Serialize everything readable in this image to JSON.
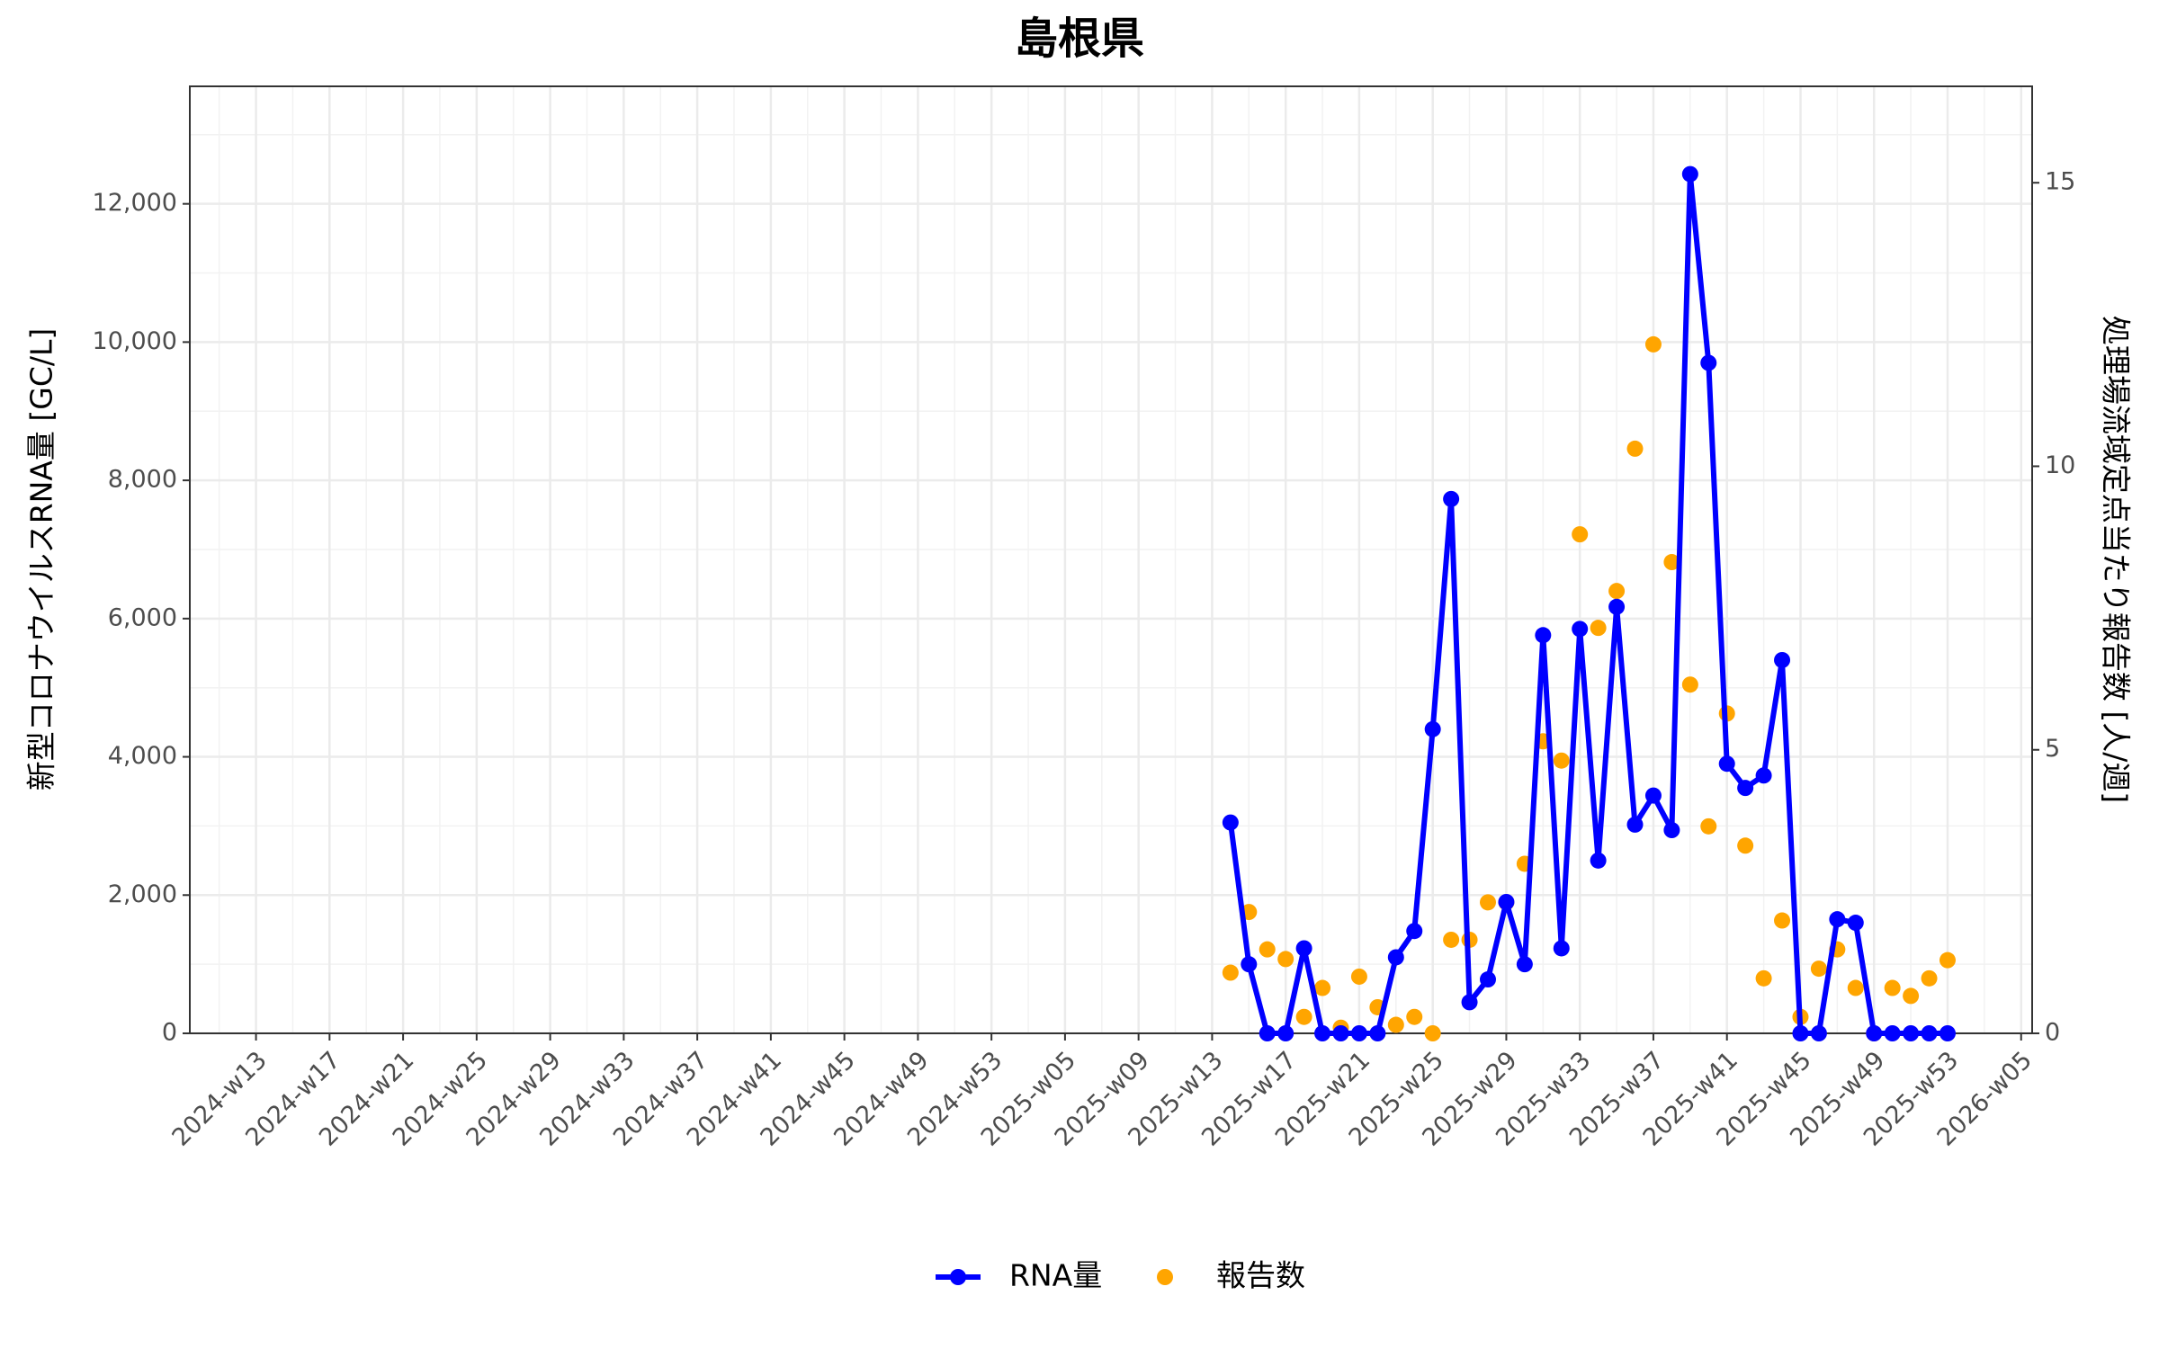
{
  "chart_data": {
    "type": "line",
    "title": "島根県",
    "y_label": "新型コロナウイルスRNA量 [GC/L]",
    "y2_label": "処理場流域定点当たり報告数 [人/週]",
    "categories": [
      null,
      null,
      null,
      "2024-w13",
      null,
      null,
      null,
      "2024-w17",
      null,
      null,
      null,
      "2024-w21",
      null,
      null,
      null,
      "2024-w25",
      null,
      null,
      null,
      "2024-w29",
      null,
      null,
      null,
      "2024-w33",
      null,
      null,
      null,
      "2024-w37",
      null,
      null,
      null,
      "2024-w41",
      null,
      null,
      null,
      "2024-w45",
      null,
      null,
      null,
      "2024-w49",
      null,
      null,
      null,
      "2024-w53",
      null,
      null,
      null,
      "2025-w05",
      null,
      null,
      null,
      "2025-w09",
      null,
      null,
      null,
      "2025-w13",
      null,
      null,
      null,
      "2025-w17",
      null,
      null,
      null,
      "2025-w21",
      null,
      null,
      null,
      "2025-w25",
      null,
      null,
      null,
      "2025-w29",
      null,
      null,
      null,
      "2025-w33",
      null,
      null,
      null,
      "2025-w37",
      null,
      null,
      null,
      "2025-w41",
      null,
      null,
      null,
      "2025-w45",
      null,
      null,
      null,
      "2025-w49",
      null,
      null,
      null,
      "2025-w53",
      null,
      null,
      null,
      "2026-w05"
    ],
    "series": [
      {
        "name": "RNA量",
        "type": "line",
        "markers": true,
        "color": "#0000ff",
        "values": [
          null,
          null,
          null,
          null,
          null,
          null,
          null,
          null,
          null,
          null,
          null,
          null,
          null,
          null,
          null,
          null,
          null,
          null,
          null,
          null,
          null,
          null,
          null,
          null,
          null,
          null,
          null,
          null,
          null,
          null,
          null,
          null,
          null,
          null,
          null,
          null,
          null,
          null,
          null,
          null,
          null,
          null,
          null,
          null,
          null,
          null,
          null,
          null,
          null,
          null,
          null,
          null,
          null,
          null,
          null,
          null,
          3050,
          1000,
          0,
          0,
          1230,
          0,
          0,
          0,
          0,
          1100,
          1480,
          4400,
          7730,
          450,
          780,
          1900,
          1000,
          5760,
          1230,
          5850,
          2500,
          6170,
          3020,
          3440,
          2940,
          12430,
          9700,
          3900,
          3550,
          3730,
          5400,
          0,
          0,
          1650,
          1600,
          0,
          0,
          0,
          0,
          0,
          null,
          null,
          null,
          null
        ]
      },
      {
        "name": "報告数",
        "type": "scatter",
        "axis": "y2",
        "color": "#ffa500",
        "values": [
          null,
          null,
          null,
          null,
          null,
          null,
          null,
          null,
          null,
          null,
          null,
          null,
          null,
          null,
          null,
          null,
          null,
          null,
          null,
          null,
          null,
          null,
          null,
          null,
          null,
          null,
          null,
          null,
          null,
          null,
          null,
          null,
          null,
          null,
          null,
          null,
          null,
          null,
          null,
          null,
          null,
          null,
          null,
          null,
          null,
          null,
          null,
          null,
          null,
          null,
          null,
          null,
          null,
          null,
          null,
          null,
          1.07,
          2.14,
          1.48,
          1.31,
          0.29,
          0.8,
          0.1,
          1.0,
          0.46,
          0.15,
          0.29,
          0,
          1.65,
          1.65,
          2.31,
          2.31,
          2.99,
          5.15,
          4.81,
          8.8,
          7.15,
          7.8,
          10.31,
          12.15,
          8.31,
          6.15,
          3.65,
          5.64,
          3.31,
          0.97,
          1.99,
          0.29,
          1.14,
          1.48,
          0.8,
          0,
          0.8,
          0.66,
          0.97,
          1.29,
          null,
          null,
          null,
          null
        ]
      }
    ],
    "ylim": [
      0,
      13700
    ],
    "yticks": [
      0,
      {
        "value": 2000,
        "label": "2,000"
      },
      {
        "value": 4000,
        "label": "4,000"
      },
      {
        "value": 6000,
        "label": "6,000"
      },
      {
        "value": 8000,
        "label": "8,000"
      },
      {
        "value": 10000,
        "label": "10,000"
      },
      {
        "value": 12000,
        "label": "12,000"
      }
    ],
    "y2lim": [
      0,
      16.7
    ],
    "y2ticks": [
      0,
      5,
      10,
      15
    ],
    "grid": true,
    "legend": "bottom"
  }
}
